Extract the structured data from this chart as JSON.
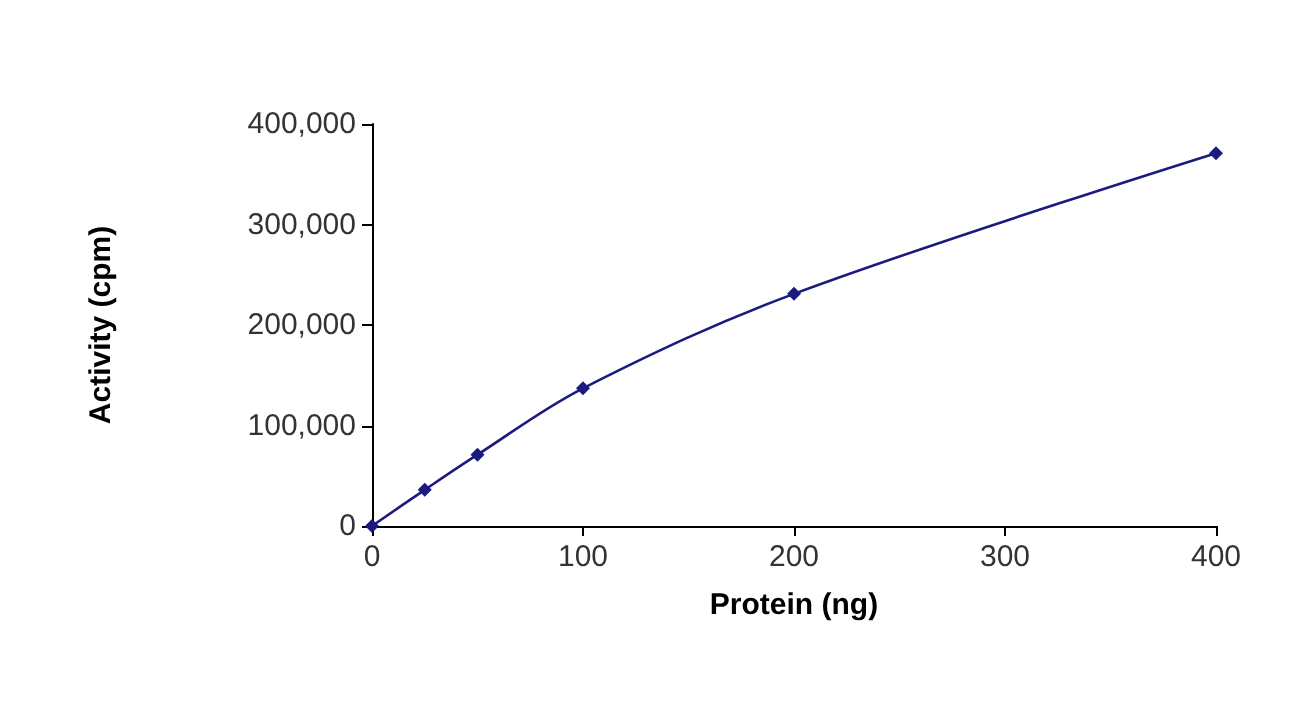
{
  "chart_data": {
    "type": "line",
    "xlabel": "Protein (ng)",
    "ylabel": "Activity (cpm)",
    "x": [
      0,
      25,
      50,
      100,
      200,
      400
    ],
    "series": [
      {
        "color": "#1a1a80",
        "values": [
          0,
          36000,
          71000,
          137000,
          231000,
          371000
        ]
      }
    ],
    "xlim": [
      0,
      400
    ],
    "xticks": [
      0,
      100,
      200,
      300,
      400
    ],
    "ylim": [
      0,
      400000
    ],
    "yticks": [
      0,
      {
        "value": 100000,
        "label": "100,000"
      },
      {
        "value": 200000,
        "label": "200,000"
      },
      {
        "value": 300000,
        "label": "300,000"
      },
      {
        "value": 400000,
        "label": "400,000"
      }
    ],
    "marker": "diamond",
    "line_style": "solid"
  }
}
